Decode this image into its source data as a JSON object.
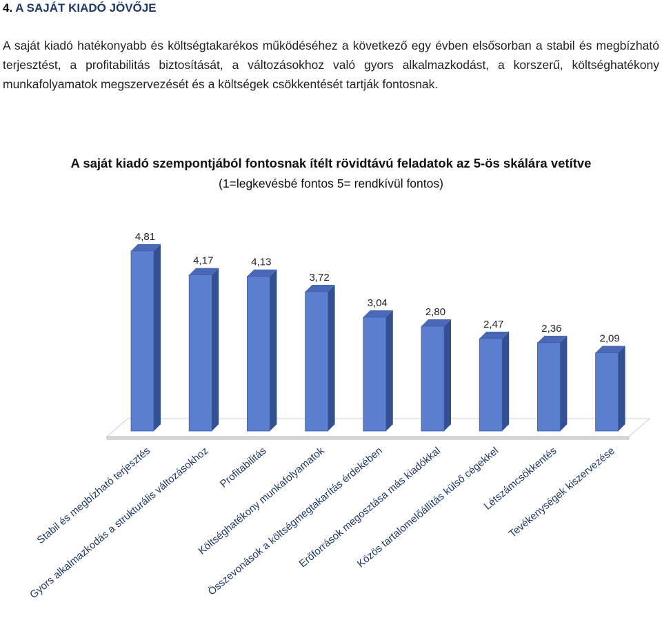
{
  "section": {
    "number": "4.",
    "title": "A SAJÁT KIADÓ JÖVŐJE"
  },
  "intro_text": "A saját kiadó hatékonyabb és költségtakarékos működéséhez a következő egy évben elsősorban a stabil és megbízható terjesztést, a profitabilitás biztosítását, a változásokhoz való gyors alkalmazkodást, a korszerű, költséghatékony munkafolyamatok megszervezését és a költségek csökkentését tartják fontosnak.",
  "colors": {
    "bar_front": "#5b7fcf",
    "bar_side": "#35508f",
    "bar_top": "#4a68b5",
    "floor": "#d9d9d9",
    "heading": "#1f3864",
    "category_text": "#1f3864"
  },
  "chart_data": {
    "type": "bar",
    "style": "3d-column",
    "title": "A saját kiadó szempontjából fontosnak ítélt rövidtávú feladatok az 5-ös skálára vetítve",
    "subtitle": "(1=legkevésbé fontos 5= rendkívül fontos)",
    "categories": [
      "Stabil és megbízható terjesztés",
      "Gyors alkalmazkodás a strukturális változásokhoz",
      "Profitabilitás",
      "Költséghatékony munkafolyamatok",
      "Összevonások a költségmegtakarítás érdekében",
      "Erőforrások megosztása más kiadókkal",
      "Közös tartalomelőállítás külső cégekkel",
      "Létszámcsökkentés",
      "Tevékenységek kiszervezése"
    ],
    "values": [
      4.81,
      4.17,
      4.13,
      3.72,
      3.04,
      2.8,
      2.47,
      2.36,
      2.09
    ],
    "value_labels": [
      "4,81",
      "4,17",
      "4,13",
      "3,72",
      "3,04",
      "2,80",
      "2,47",
      "2,36",
      "2,09"
    ],
    "grid": false,
    "legend": "none",
    "ylim": [
      0,
      5.2
    ]
  }
}
